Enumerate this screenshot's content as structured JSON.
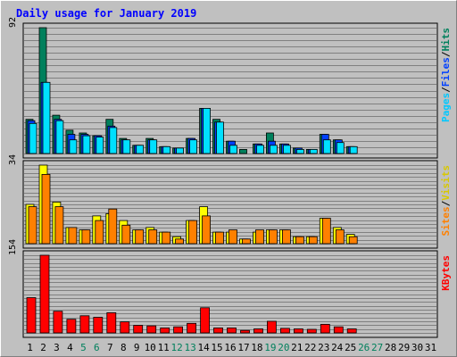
{
  "chart_data": {
    "type": "bar",
    "title": "Daily usage for January 2019",
    "categories": [
      "1",
      "2",
      "3",
      "4",
      "5",
      "6",
      "7",
      "8",
      "9",
      "10",
      "11",
      "12",
      "13",
      "14",
      "15",
      "16",
      "17",
      "18",
      "19",
      "20",
      "21",
      "22",
      "23",
      "24",
      "25",
      "26",
      "27",
      "28",
      "29",
      "30",
      "31"
    ],
    "weekend_days": [
      5,
      6,
      12,
      13,
      19,
      20,
      26,
      27
    ],
    "panels": [
      {
        "id": "hits",
        "ymax_label": "92",
        "ymax": 92,
        "legend": [
          "Pages",
          "/",
          "Files",
          "/",
          "Hits"
        ],
        "series": [
          {
            "name": "Hits",
            "color": "#00805c",
            "values": [
              25,
              92,
              28,
              17,
              15,
              13,
              25,
              11,
              6,
              11,
              5,
              4,
              11,
              33,
              25,
              9,
              3,
              7,
              15,
              7,
              4,
              3,
              14,
              10,
              5,
              0,
              0,
              0,
              0,
              0,
              0
            ]
          },
          {
            "name": "Files",
            "color": "#0040ff",
            "values": [
              24,
              52,
              25,
              14,
              14,
              13,
              20,
              10,
              6,
              10,
              5,
              4,
              11,
              33,
              23,
              9,
              0,
              7,
              9,
              7,
              4,
              3,
              14,
              10,
              5,
              0,
              0,
              0,
              0,
              0,
              0
            ]
          },
          {
            "name": "Pages",
            "color": "#00e0ff",
            "values": [
              22,
              52,
              24,
              10,
              13,
              12,
              19,
              10,
              6,
              10,
              5,
              4,
              10,
              33,
              23,
              6,
              0,
              6,
              6,
              6,
              3,
              3,
              10,
              8,
              5,
              0,
              0,
              0,
              0,
              0,
              0
            ]
          }
        ]
      },
      {
        "id": "visits",
        "ymax_label": "34",
        "ymax": 34,
        "legend": [
          "Sites",
          "/",
          "Visits"
        ],
        "series": [
          {
            "name": "Visits",
            "color": "#ffff00",
            "values": [
              17,
              34,
              18,
              7,
              6,
              12,
              13,
              10,
              6,
              7,
              5,
              3,
              10,
              16,
              5,
              5,
              2,
              5,
              6,
              6,
              3,
              3,
              11,
              7,
              4,
              0,
              0,
              0,
              0,
              0,
              0
            ]
          },
          {
            "name": "Sites",
            "color": "#ff8000",
            "values": [
              16,
              30,
              16,
              7,
              6,
              10,
              15,
              8,
              6,
              6,
              5,
              2,
              10,
              12,
              5,
              6,
              2,
              6,
              6,
              6,
              3,
              3,
              11,
              6,
              3,
              0,
              0,
              0,
              0,
              0,
              0
            ]
          }
        ]
      },
      {
        "id": "kbytes",
        "ymax_label": "154",
        "ymax": 154,
        "legend": [
          "KBytes"
        ],
        "series": [
          {
            "name": "KBytes",
            "color": "#ff0000",
            "values": [
              70,
              154,
              43,
              27,
              34,
              31,
              40,
              22,
              15,
              14,
              10,
              12,
              19,
              50,
              10,
              10,
              5,
              8,
              23,
              9,
              8,
              7,
              17,
              12,
              8,
              0,
              0,
              0,
              0,
              0,
              0
            ]
          }
        ]
      }
    ]
  },
  "colors": {
    "background": "#c0c0c0",
    "gridline": "#808080",
    "title": "#0000ff",
    "weekday_label": "#000000",
    "weekend_label": "#00805c"
  }
}
